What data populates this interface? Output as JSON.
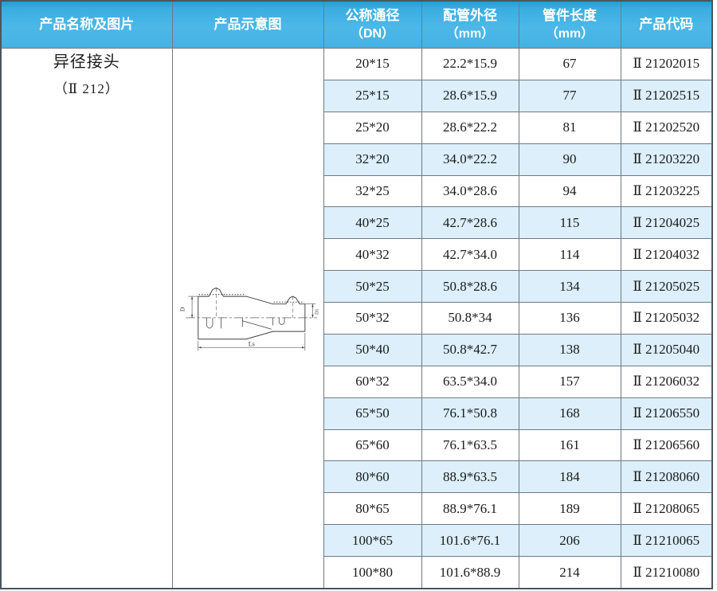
{
  "colors": {
    "header_blue": "#45b2e3",
    "header_blue_dark": "#1f9fd6",
    "row_alt_blue": "#dceffa",
    "cell_border": "#6e7a84",
    "outer_border": "#4a565f",
    "header_text": "#ffffff",
    "body_text": "#1b1b1b"
  },
  "header": {
    "columns": [
      {
        "title": "产品名称及图片",
        "unit": ""
      },
      {
        "title": "产品示意图",
        "unit": ""
      },
      {
        "title": "公称通径",
        "unit": "（DN）"
      },
      {
        "title": "配管外径",
        "unit": "（mm）"
      },
      {
        "title": "管件长度",
        "unit": "（mm）"
      },
      {
        "title": "产品代码",
        "unit": ""
      }
    ]
  },
  "product": {
    "name": "异径接头",
    "model": "（Ⅱ 212）"
  },
  "diagram": {
    "labels": {
      "d": "D",
      "d1": "D1",
      "ls": "Ls"
    }
  },
  "table": {
    "rows": [
      {
        "dn": "20*15",
        "od": "22.2*15.9",
        "len": "67",
        "code": "Ⅱ 21202015"
      },
      {
        "dn": "25*15",
        "od": "28.6*15.9",
        "len": "77",
        "code": "Ⅱ 21202515"
      },
      {
        "dn": "25*20",
        "od": "28.6*22.2",
        "len": "81",
        "code": "Ⅱ 21202520"
      },
      {
        "dn": "32*20",
        "od": "34.0*22.2",
        "len": "90",
        "code": "Ⅱ 21203220"
      },
      {
        "dn": "32*25",
        "od": "34.0*28.6",
        "len": "94",
        "code": "Ⅱ 21203225"
      },
      {
        "dn": "40*25",
        "od": "42.7*28.6",
        "len": "115",
        "code": "Ⅱ 21204025"
      },
      {
        "dn": "40*32",
        "od": "42.7*34.0",
        "len": "114",
        "code": "Ⅱ 21204032"
      },
      {
        "dn": "50*25",
        "od": "50.8*28.6",
        "len": "134",
        "code": "Ⅱ 21205025"
      },
      {
        "dn": "50*32",
        "od": "50.8*34",
        "len": "136",
        "code": "Ⅱ 21205032"
      },
      {
        "dn": "50*40",
        "od": "50.8*42.7",
        "len": "138",
        "code": "Ⅱ 21205040"
      },
      {
        "dn": "60*32",
        "od": "63.5*34.0",
        "len": "157",
        "code": "Ⅱ 21206032"
      },
      {
        "dn": "65*50",
        "od": "76.1*50.8",
        "len": "168",
        "code": "Ⅱ 21206550"
      },
      {
        "dn": "65*60",
        "od": "76.1*63.5",
        "len": "161",
        "code": "Ⅱ 21206560"
      },
      {
        "dn": "80*60",
        "od": "88.9*63.5",
        "len": "184",
        "code": "Ⅱ 21208060"
      },
      {
        "dn": "80*65",
        "od": "88.9*76.1",
        "len": "189",
        "code": "Ⅱ 21208065"
      },
      {
        "dn": "100*65",
        "od": "101.6*76.1",
        "len": "206",
        "code": "Ⅱ 21210065"
      },
      {
        "dn": "100*80",
        "od": "101.6*88.9",
        "len": "214",
        "code": "Ⅱ 21210080"
      }
    ]
  }
}
